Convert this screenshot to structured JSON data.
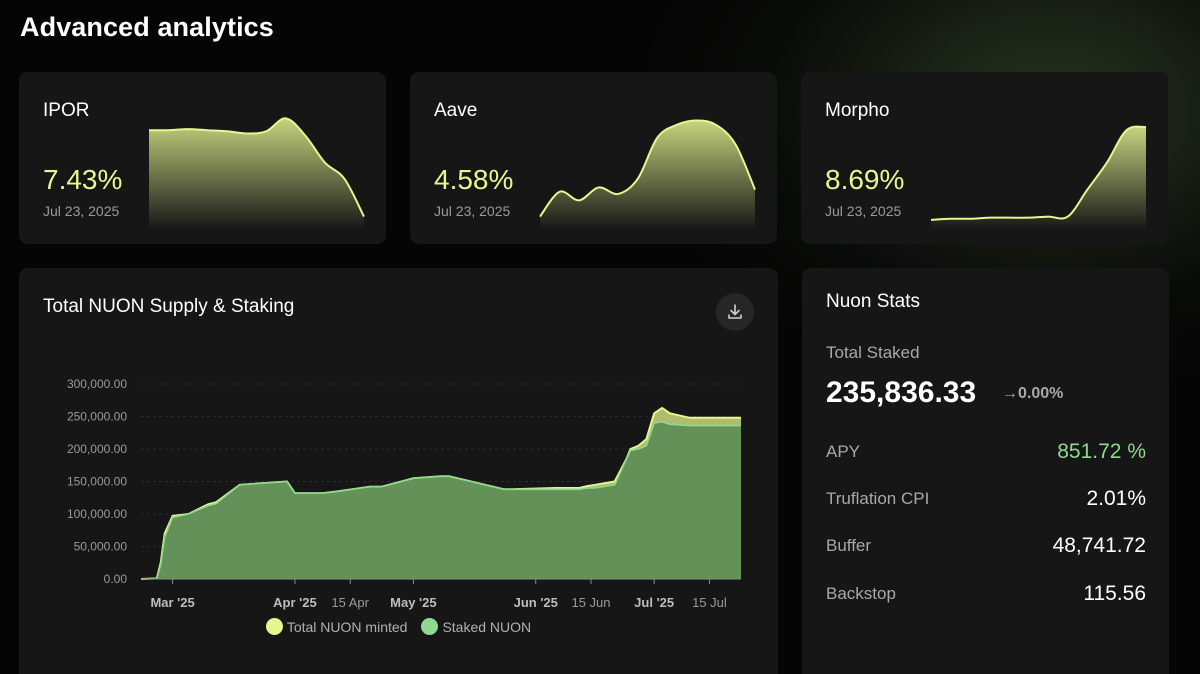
{
  "page": {
    "title": "Advanced analytics"
  },
  "rates": [
    {
      "name": "IPOR",
      "value": "7.43%",
      "date": "Jul 23, 2025",
      "trend": [
        0.85,
        0.85,
        0.86,
        0.85,
        0.84,
        0.82,
        0.84,
        0.96,
        0.8,
        0.55,
        0.4,
        0.05
      ]
    },
    {
      "name": "Aave",
      "value": "4.58%",
      "date": "Jul 23, 2025",
      "trend": [
        0.05,
        0.28,
        0.2,
        0.32,
        0.26,
        0.4,
        0.78,
        0.9,
        0.94,
        0.9,
        0.72,
        0.3
      ]
    },
    {
      "name": "Morpho",
      "value": "8.69%",
      "date": "Jul 23, 2025",
      "trend": [
        0.02,
        0.03,
        0.03,
        0.04,
        0.04,
        0.04,
        0.05,
        0.05,
        0.3,
        0.55,
        0.85,
        0.88
      ]
    }
  ],
  "supply_chart": {
    "title": "Total NUON Supply & Staking",
    "download_icon": "download-icon",
    "legend": {
      "minted": "Total NUON minted",
      "staked": "Staked NUON"
    },
    "colors": {
      "minted": "#e6f690",
      "staked": "#6b9a5a",
      "staked_line": "#8fd98f"
    }
  },
  "stats": {
    "title": "Nuon Stats",
    "total_label": "Total Staked",
    "total_value": "235,836.33",
    "total_change": "→0.00%",
    "rows": [
      {
        "label": "APY",
        "value": "851.72 %",
        "accent": "#8fd98f"
      },
      {
        "label": "Truflation CPI",
        "value": "2.01%"
      },
      {
        "label": "Buffer",
        "value": "48,741.72"
      },
      {
        "label": "Backstop",
        "value": "115.56"
      }
    ]
  },
  "chart_data": {
    "type": "area",
    "title": "Total NUON Supply & Staking",
    "xlabel": "",
    "ylabel": "",
    "x_ticks": [
      "Mar '25",
      "Apr '25",
      "15 Apr",
      "May '25",
      "Jun '25",
      "15 Jun",
      "Jul '25",
      "15 Jul"
    ],
    "y_ticks": [
      "0.00",
      "50,000.00",
      "100,000.00",
      "150,000.00",
      "200,000.00",
      "250,000.00",
      "300,000.00"
    ],
    "ylim": [
      0,
      300000
    ],
    "x": [
      "2025-02-21",
      "2025-02-25",
      "2025-02-26",
      "2025-02-27",
      "2025-03-01",
      "2025-03-05",
      "2025-03-10",
      "2025-03-12",
      "2025-03-18",
      "2025-03-30",
      "2025-04-01",
      "2025-04-08",
      "2025-04-12",
      "2025-04-20",
      "2025-04-23",
      "2025-05-01",
      "2025-05-08",
      "2025-05-10",
      "2025-05-24",
      "2025-05-26",
      "2025-06-06",
      "2025-06-12",
      "2025-06-14",
      "2025-06-16",
      "2025-06-21",
      "2025-06-24",
      "2025-06-25",
      "2025-06-27",
      "2025-06-29",
      "2025-07-01",
      "2025-07-03",
      "2025-07-05",
      "2025-07-10",
      "2025-07-20",
      "2025-07-23"
    ],
    "series": [
      {
        "name": "Total NUON minted",
        "values": [
          0,
          1000,
          25000,
          70000,
          97000,
          100000,
          115000,
          118000,
          145000,
          150000,
          132000,
          132000,
          135000,
          142000,
          142000,
          155000,
          158000,
          158000,
          138000,
          138000,
          140000,
          140000,
          143000,
          145000,
          150000,
          185000,
          200000,
          205000,
          215000,
          255000,
          263000,
          255000,
          248000,
          248000,
          248000
        ]
      },
      {
        "name": "Staked NUON",
        "values": [
          0,
          1000,
          22000,
          65000,
          95000,
          100000,
          113000,
          116000,
          145000,
          150000,
          132000,
          132000,
          135000,
          142000,
          142000,
          155000,
          158000,
          158000,
          138000,
          138000,
          138000,
          138000,
          140000,
          140000,
          145000,
          185000,
          198000,
          200000,
          205000,
          240000,
          242000,
          238000,
          236000,
          236000,
          236000
        ]
      }
    ],
    "legend_position": "bottom",
    "grid": true
  }
}
